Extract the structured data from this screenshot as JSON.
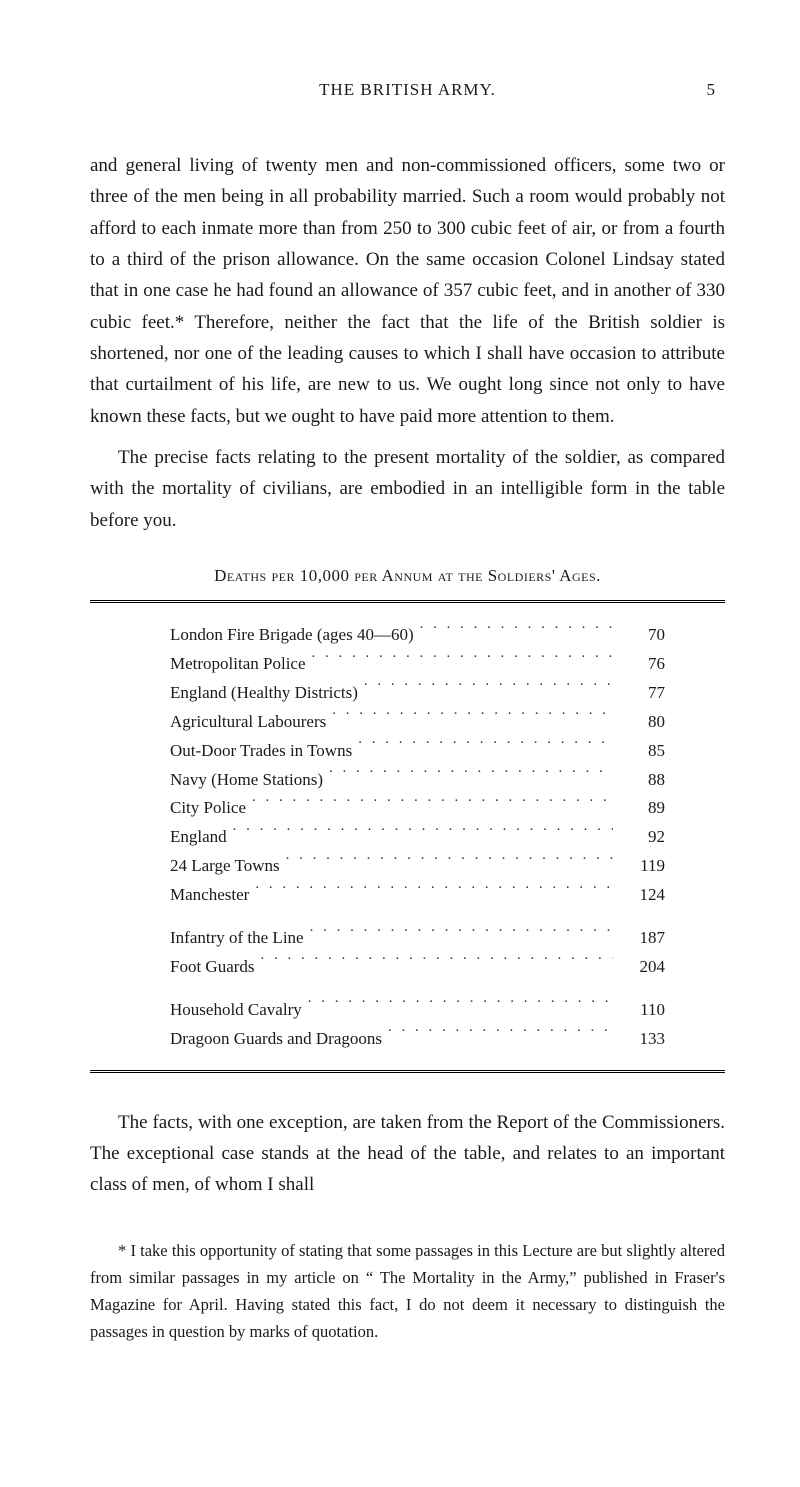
{
  "header": {
    "running_title": "THE BRITISH ARMY.",
    "page_number": "5"
  },
  "paragraphs": {
    "p1": "and general living of twenty men and non-commissioned officers, some two or three of the men being in all probability married. Such a room would probably not afford to each inmate more than from 250 to 300 cubic feet of air, or from a fourth to a third of the prison allowance. On the same occasion Colonel Lindsay stated that in one case he had found an allowance of 357 cubic feet, and in another of 330 cubic feet.* Therefore, neither the fact that the life of the British soldier is shortened, nor one of the leading causes to which I shall have occasion to attribute that curtailment of his life, are new to us. We ought long since not only to have known these facts, but we ought to have paid more attention to them.",
    "p2": "The precise facts relating to the present mortality of the soldier, as compared with the mortality of civilians, are embodied in an intelligible form in the table before you.",
    "p3": "The facts, with one exception, are taken from the Report of the Commissioners. The exceptional case stands at the head of the table, and relates to an important class of men, of whom I shall"
  },
  "table": {
    "title": "Deaths per 10,000 per Annum at the Soldiers' Ages.",
    "rows": [
      {
        "label": "London Fire Brigade (ages 40—60)",
        "value": "70"
      },
      {
        "label": "Metropolitan Police",
        "value": "76"
      },
      {
        "label": "England (Healthy Districts)",
        "value": "77"
      },
      {
        "label": "Agricultural Labourers",
        "value": "80"
      },
      {
        "label": "Out-Door Trades in Towns",
        "value": "85"
      },
      {
        "label": "Navy (Home Stations)",
        "value": "88"
      },
      {
        "label": "City Police",
        "value": "89"
      },
      {
        "label": "England",
        "value": "92"
      },
      {
        "label": "24 Large Towns",
        "value": "119"
      },
      {
        "label": "Manchester",
        "value": "124"
      }
    ],
    "rows2": [
      {
        "label": "Infantry of the Line",
        "value": "187"
      },
      {
        "label": "Foot Guards",
        "value": "204"
      }
    ],
    "rows3": [
      {
        "label": "Household Cavalry",
        "value": "110"
      },
      {
        "label": "Dragoon Guards and Dragoons",
        "value": "133"
      }
    ]
  },
  "footnote": "* I take this opportunity of stating that some passages in this Lecture are but slightly altered from similar passages in my article on “ The Mortality in the Army,” published in Fraser's Magazine for April. Having stated this fact, I do not deem it necessary to distinguish the passages in question by marks of quotation."
}
